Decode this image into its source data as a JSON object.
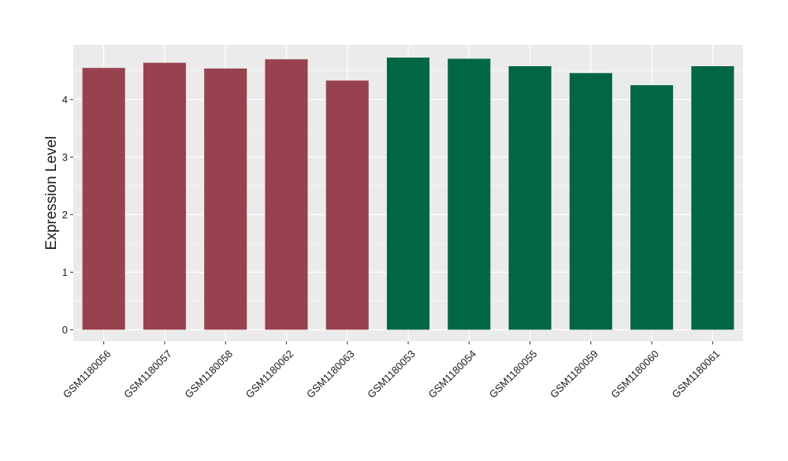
{
  "chart_data": {
    "type": "bar",
    "title": "",
    "xlabel": "",
    "ylabel": "Expression Level",
    "ylim": [
      -0.2,
      4.95
    ],
    "yticks": [
      0,
      1,
      2,
      3,
      4
    ],
    "grid": true,
    "legend": "none",
    "categories": [
      "GSM1180056",
      "GSM1180057",
      "GSM1180058",
      "GSM1180062",
      "GSM1180063",
      "GSM1180053",
      "GSM1180054",
      "GSM1180055",
      "GSM1180059",
      "GSM1180060",
      "GSM1180061"
    ],
    "values": [
      4.55,
      4.64,
      4.54,
      4.7,
      4.33,
      4.73,
      4.71,
      4.58,
      4.46,
      4.25,
      4.58
    ],
    "groups": [
      0,
      0,
      0,
      0,
      0,
      1,
      1,
      1,
      1,
      1,
      1
    ],
    "group_colors": [
      "#99424f",
      "#006644"
    ],
    "panel_background": "#ebebeb",
    "grid_color": "#ffffff"
  }
}
